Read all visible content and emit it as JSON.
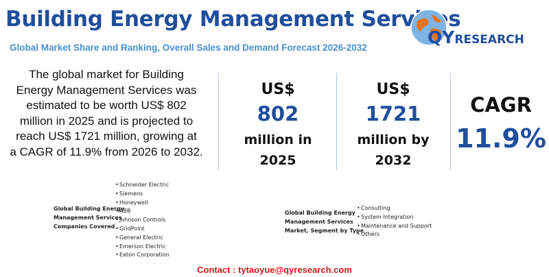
{
  "header": {
    "title": "Building Energy Management Services",
    "subtitle": "Global Market Share and Ranking, Overall Sales and Demand Forecast 2026-2032"
  },
  "logo": {
    "letters_main": "QY",
    "letters_rest": "RESEARCH",
    "colors": {
      "blue": "#1f4e9c",
      "orange": "#e8731c",
      "light_blue": "#7eb3e6"
    }
  },
  "summary": {
    "lines": [
      "The global market for Building",
      "Energy Management Services was",
      "estimated to be worth US$ 802",
      "million in 2025 and is projected to",
      "reach US$ 1721 million, growing at",
      "a CAGR of 11.9% from 2026 to 2032."
    ]
  },
  "stats": {
    "current": {
      "currency": "US$",
      "value": "802",
      "unit_line1": "million in",
      "unit_line2": "2025"
    },
    "forecast": {
      "currency": "US$",
      "value": "1721",
      "unit_line1": "million by",
      "unit_line2": "2032"
    },
    "cagr": {
      "label": "CAGR",
      "value": "11.9%"
    }
  },
  "companies": {
    "label_lines": [
      "Global Building Energy",
      "Management Services",
      "Companies Covered"
    ],
    "items": [
      "Schneider Electric",
      "Siemens",
      "Honeywell",
      "ABB",
      "Johnson Controls",
      "GridPoint",
      "General Electric",
      "Emerson Electric",
      "Eaton Corporation"
    ]
  },
  "segments": {
    "label_lines": [
      "Global Building Energy",
      "Management Services",
      "Market, Segment by Type"
    ],
    "items": [
      "Consulting",
      "System Integration",
      "Maintenance and Support",
      "Others"
    ]
  },
  "contact": "Contact : tytaoyue@qyresearch.com",
  "colors": {
    "title": "#1f4e9c",
    "subtitle": "#4a8fd0",
    "contact": "#d01818",
    "divider": "#a9c3e3"
  }
}
